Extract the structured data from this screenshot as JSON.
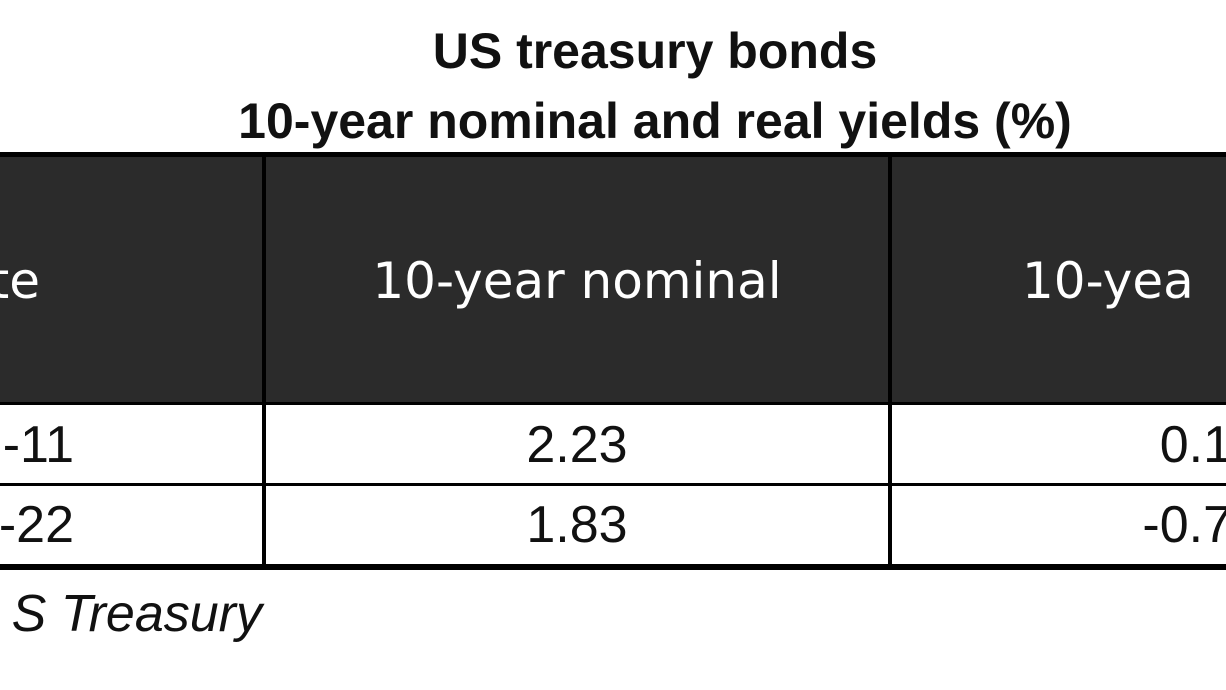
{
  "title": [
    "US treasury bonds",
    "10-year nominal and real yields (%)"
  ],
  "table": {
    "header": [
      "te",
      "10-year nominal",
      "10-yea"
    ],
    "rows": [
      [
        "-11",
        "2.23",
        "0.1"
      ],
      [
        "-22",
        "1.83",
        "-0.7"
      ]
    ]
  },
  "source": "S Treasury"
}
